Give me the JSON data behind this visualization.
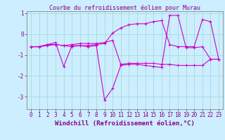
{
  "title": "Courbe du refroidissement éolien pour Murau",
  "xlabel": "Windchill (Refroidissement éolien,°C)",
  "background_color": "#cceeff",
  "grid_color": "#aadddd",
  "line_color": "#cc00cc",
  "xlim": [
    -0.5,
    23.5
  ],
  "ylim": [
    -3.6,
    1.1
  ],
  "yticks": [
    1,
    0,
    -1,
    -2,
    -3
  ],
  "xticks": [
    0,
    1,
    2,
    3,
    4,
    5,
    6,
    7,
    8,
    9,
    10,
    11,
    12,
    13,
    14,
    15,
    16,
    17,
    18,
    19,
    20,
    21,
    22,
    23
  ],
  "series1_x": [
    0,
    1,
    2,
    3,
    4,
    5,
    6,
    7,
    8,
    9,
    10,
    11,
    12,
    13,
    14,
    15,
    16,
    17,
    18,
    19,
    20,
    21,
    22,
    23
  ],
  "series1_y": [
    -0.6,
    -0.6,
    -0.5,
    -0.5,
    -0.55,
    -0.6,
    -0.55,
    -0.55,
    -0.5,
    -0.45,
    0.05,
    0.3,
    0.45,
    0.5,
    0.5,
    0.6,
    0.65,
    -0.5,
    -0.6,
    -0.6,
    -0.6,
    0.7,
    0.6,
    -1.2
  ],
  "series2_x": [
    0,
    1,
    2,
    3,
    4,
    5,
    6,
    7,
    8,
    9,
    10,
    11,
    12,
    13,
    14,
    15,
    16,
    17,
    18,
    19,
    20,
    21,
    22,
    23
  ],
  "series2_y": [
    -0.6,
    -0.6,
    -0.5,
    -0.4,
    -1.55,
    -0.55,
    -0.55,
    -0.6,
    -0.55,
    -3.15,
    -2.6,
    -1.5,
    -1.45,
    -1.45,
    -1.5,
    -1.55,
    -1.6,
    0.9,
    0.9,
    -0.65,
    -0.65,
    -0.6,
    -1.2,
    -1.2
  ],
  "series3_x": [
    0,
    1,
    2,
    3,
    4,
    5,
    6,
    7,
    8,
    9,
    10,
    11,
    12,
    13,
    14,
    15,
    16,
    17,
    18,
    19,
    20,
    21,
    22,
    23
  ],
  "series3_y": [
    -0.6,
    -0.6,
    -0.55,
    -0.5,
    -0.55,
    -0.5,
    -0.45,
    -0.45,
    -0.45,
    -0.4,
    -0.3,
    -1.45,
    -1.4,
    -1.4,
    -1.4,
    -1.4,
    -1.45,
    -1.45,
    -1.5,
    -1.5,
    -1.5,
    -1.5,
    -1.2,
    -1.2
  ],
  "tick_fontsize": 5.5,
  "xlabel_fontsize": 6.5,
  "title_fontsize": 6.0,
  "text_color": "#880088",
  "spine_color": "#888888"
}
